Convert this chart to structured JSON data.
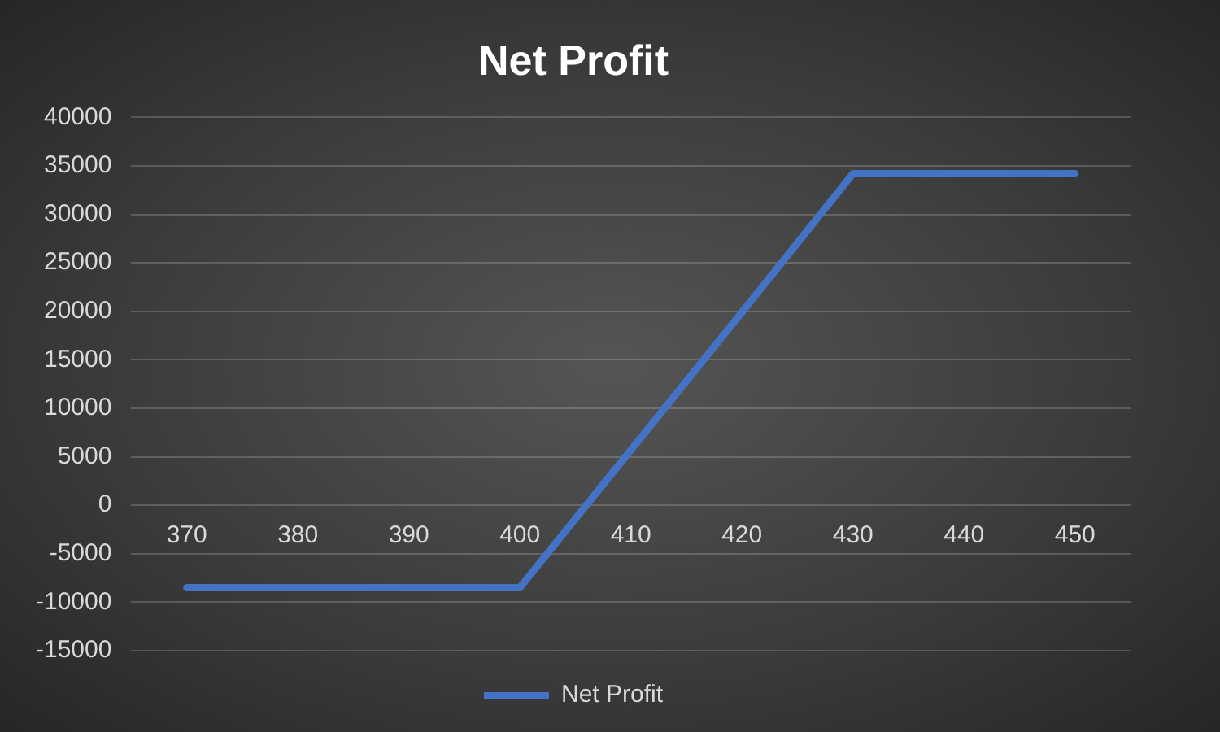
{
  "chart_data": {
    "type": "line",
    "title": "Net Profit",
    "categories": [
      "370",
      "380",
      "390",
      "400",
      "410",
      "420",
      "430",
      "440",
      "450"
    ],
    "series": [
      {
        "name": "Net Profit",
        "color": "#4472c4",
        "values": [
          -8500,
          -8500,
          -8500,
          -8500,
          5700,
          19900,
          34200,
          34200,
          34200
        ]
      }
    ],
    "ylim": [
      -15000,
      40000
    ],
    "yticks": [
      -15000,
      -10000,
      -5000,
      0,
      5000,
      10000,
      15000,
      20000,
      25000,
      30000,
      35000,
      40000
    ],
    "grid": "y",
    "legend": "bottom",
    "marker": "none",
    "line_style": "solid"
  }
}
